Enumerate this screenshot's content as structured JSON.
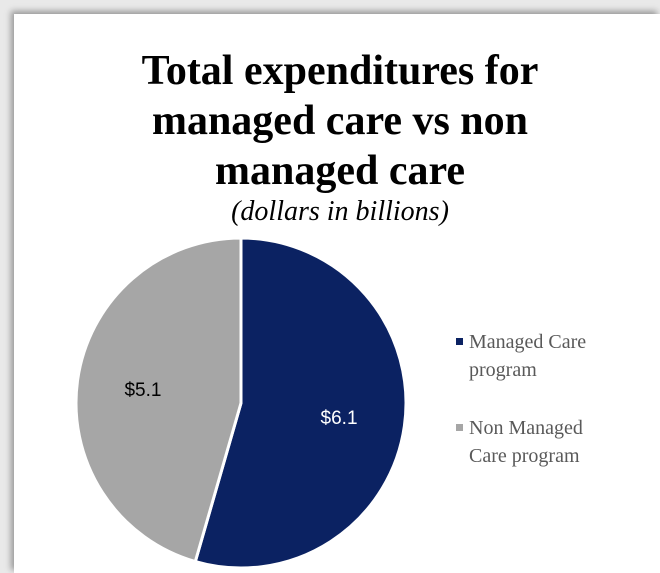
{
  "chart_data": {
    "type": "pie",
    "title": "Total expenditures for managed care vs non managed care",
    "subtitle": "(dollars in billions)",
    "series": [
      {
        "name": "Managed Care program",
        "color": "#0b2262",
        "values": [
          6.1
        ],
        "value_labels": [
          "$6.1"
        ]
      },
      {
        "name": "Non Managed Care program",
        "color": "#a6a6a6",
        "values": [
          5.1
        ],
        "value_labels": [
          "$5.1"
        ]
      }
    ],
    "legend": "right"
  }
}
